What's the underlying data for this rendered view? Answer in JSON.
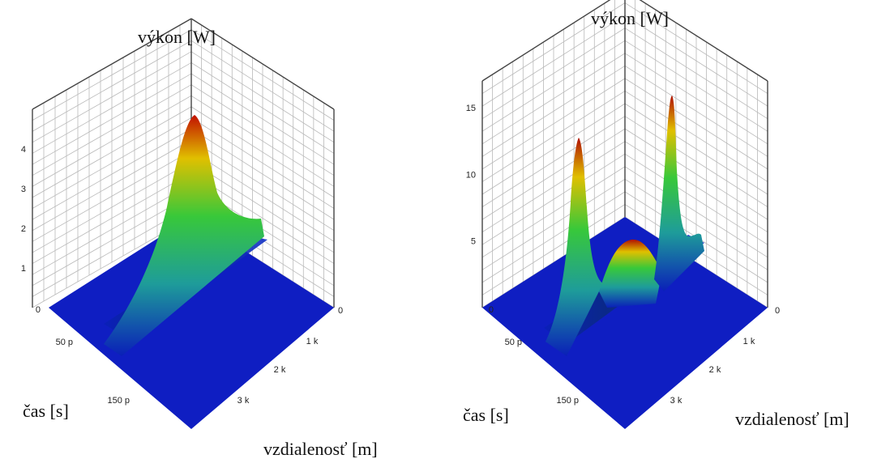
{
  "chart_data": [
    {
      "type": "surface3d",
      "zlabel": "výkon [W]",
      "xlabel": "vzdialenosť [m]",
      "ylabel": "čas  [s]",
      "z_ticks": [
        "1",
        "2",
        "3",
        "4"
      ],
      "x_ticks": [
        "0",
        "1 k",
        "2 k",
        "3 k"
      ],
      "y_ticks": [
        "0",
        "50 p",
        "150 p"
      ],
      "zlim": [
        0,
        5
      ],
      "peaks": [
        {
          "distance": 0,
          "time": 90,
          "power": 4.9,
          "decay_to_power": 1.4
        }
      ],
      "colormap": [
        "#0019c8",
        "#1fa08c",
        "#32c832",
        "#f0d000",
        "#c01000"
      ]
    },
    {
      "type": "surface3d",
      "zlabel": "výkon [W]",
      "xlabel": "vzdialenosť [m]",
      "ylabel": "čas  [s]",
      "z_ticks": [
        "5",
        "10",
        "15"
      ],
      "x_ticks": [
        "0",
        "1 k",
        "2 k",
        "3 k"
      ],
      "y_ticks": [
        "0",
        "50 p",
        "150 p"
      ],
      "zlim": [
        0,
        17
      ],
      "peaks": [
        {
          "distance": 0,
          "time": 60,
          "power": 15.5
        },
        {
          "distance": 0,
          "time": 110,
          "power": 6.5
        },
        {
          "distance": 0,
          "time": 150,
          "power": 16.5,
          "decay_to_power": 3.5
        }
      ],
      "colormap": [
        "#0019c8",
        "#1fa08c",
        "#32c832",
        "#f0d000",
        "#c01000"
      ]
    }
  ]
}
